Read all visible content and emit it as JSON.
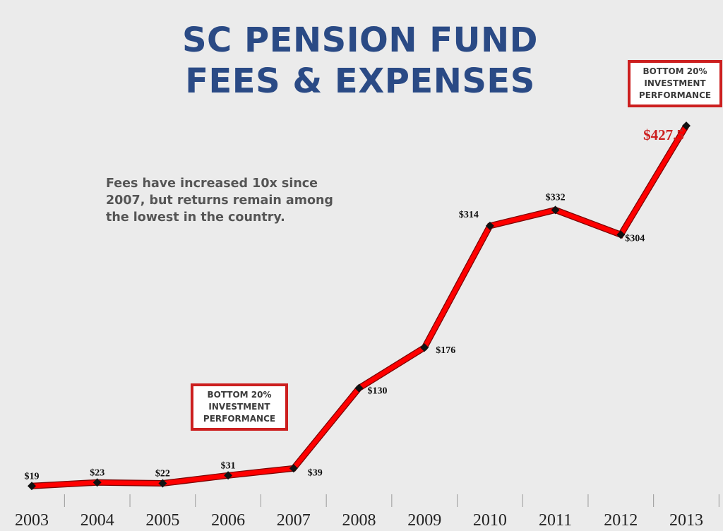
{
  "title_lines": [
    "SC PENSION FUND",
    "FEES & EXPENSES"
  ],
  "annotation": "Fees have increased 10x since 2007, but returns remain among the lowest in the country.",
  "callouts": {
    "left": [
      "BOTTOM 20%",
      "INVESTMENT",
      "PERFORMANCE"
    ],
    "right": [
      "BOTTOM 20%",
      "INVESTMENT",
      "PERFORMANCE"
    ]
  },
  "colors": {
    "line": "#ff0000",
    "line_outline": "#7a0000",
    "marker": "#111111",
    "title": "#2a4a85",
    "callout_border": "#cc1f1f",
    "highlight_label": "#cc1f1f"
  },
  "chart_data": {
    "type": "line",
    "x": [
      "2003",
      "2004",
      "2005",
      "2006",
      "2007",
      "2008",
      "2009",
      "2010",
      "2011",
      "2012",
      "2013"
    ],
    "values": [
      19,
      23,
      22,
      31,
      39,
      130,
      176,
      314,
      332,
      304,
      427.5
    ],
    "labels": [
      "$19",
      "$23",
      "$22",
      "$31",
      "$39",
      "$130",
      "$176",
      "$314",
      "$332",
      "$304",
      "$427.5"
    ],
    "highlight_index": 10,
    "ylim": [
      0,
      450
    ],
    "grid": false,
    "legend": "none",
    "title": "SC PENSION FUND FEES & EXPENSES",
    "xlabel": "",
    "ylabel": ""
  }
}
